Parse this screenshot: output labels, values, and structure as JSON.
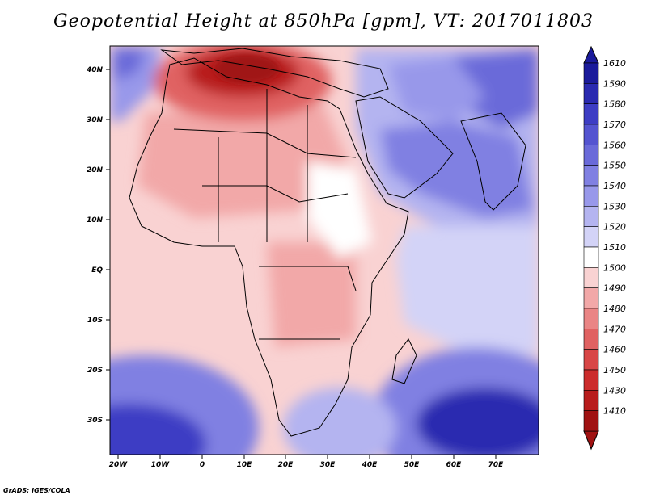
{
  "title": "Geopotential Height at 850hPa [gpm], VT: 2017011803",
  "credit": "GrADS: IGES/COLA",
  "axes": {
    "lat_labels": [
      "40N",
      "30N",
      "20N",
      "10N",
      "EQ",
      "10S",
      "20S",
      "30S"
    ],
    "lon_labels": [
      "20W",
      "10W",
      "0",
      "10E",
      "20E",
      "30E",
      "40E",
      "50E",
      "60E",
      "70E"
    ]
  },
  "colorbar": {
    "levels": [
      "1610",
      "1590",
      "1580",
      "1570",
      "1560",
      "1550",
      "1540",
      "1530",
      "1520",
      "1510",
      "1500",
      "1490",
      "1480",
      "1470",
      "1460",
      "1450",
      "1430",
      "1410"
    ],
    "colors": [
      "#1b1b9b",
      "#2a2ab0",
      "#3d3dc4",
      "#5454d0",
      "#6a6ad9",
      "#8080e2",
      "#9898ea",
      "#b4b4f0",
      "#d3d3f7",
      "#ffffff",
      "#f9d2d2",
      "#f2a8a8",
      "#ea8585",
      "#e06262",
      "#d84646",
      "#cc2c2c",
      "#b81c1c",
      "#a01212"
    ]
  },
  "colors": {
    "sea_background": "#f9d2d2",
    "deep_blue": "#2a2ab0",
    "mid_blue": "#8080e2",
    "light_blue": "#d3d3f7",
    "dark_red": "#a01212",
    "mid_red": "#e06262",
    "light_red": "#f2a8a8",
    "land_outline": "#000000"
  }
}
